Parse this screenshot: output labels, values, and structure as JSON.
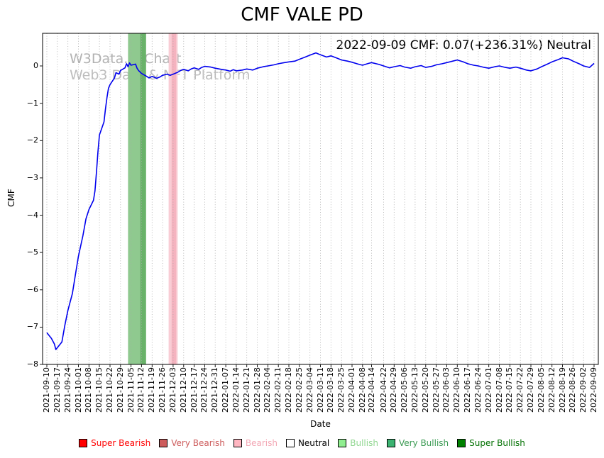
{
  "title": "CMF VALE PD",
  "annotation": "2022-09-09 CMF: 0.07(+236.31%) Neutral",
  "watermark": {
    "line1": "W3Data.io Chart",
    "line2": "Web3 Data & NFT Platform"
  },
  "chart_data": {
    "type": "line",
    "title": "CMF VALE PD",
    "xlabel": "Date",
    "ylabel": "CMF",
    "x_range": [
      "2021-09-10",
      "2022-09-09"
    ],
    "ylim": [
      -8,
      0.875
    ],
    "y_ticks": [
      0,
      -1,
      -2,
      -3,
      -4,
      -5,
      -6,
      -7,
      -8
    ],
    "grid": "vertical-dotted",
    "line_color": "#0000ee",
    "x_ticks": [
      "2021-09-10",
      "2021-09-17",
      "2021-09-24",
      "2021-10-01",
      "2021-10-08",
      "2021-10-15",
      "2021-10-22",
      "2021-10-29",
      "2021-11-05",
      "2021-11-12",
      "2021-11-19",
      "2021-11-26",
      "2021-12-03",
      "2021-12-10",
      "2021-12-17",
      "2021-12-24",
      "2021-12-31",
      "2022-01-07",
      "2022-01-14",
      "2022-01-21",
      "2022-01-28",
      "2022-02-04",
      "2022-02-11",
      "2022-02-18",
      "2022-02-25",
      "2022-03-04",
      "2022-03-11",
      "2022-03-18",
      "2022-03-25",
      "2022-04-01",
      "2022-04-08",
      "2022-04-14",
      "2022-04-22",
      "2022-04-29",
      "2022-05-06",
      "2022-05-13",
      "2022-05-20",
      "2022-05-27",
      "2022-06-03",
      "2022-06-10",
      "2022-06-17",
      "2022-06-24",
      "2022-07-01",
      "2022-07-08",
      "2022-07-15",
      "2022-07-22",
      "2022-07-29",
      "2022-08-05",
      "2022-08-12",
      "2022-08-19",
      "2022-08-26",
      "2022-09-02",
      "2022-09-09"
    ],
    "regions": [
      {
        "start": "2021-11-03",
        "end": "2021-11-11",
        "label": "Bullish",
        "color": "#8fc98f"
      },
      {
        "start": "2021-11-11",
        "end": "2021-11-15",
        "label": "Very Bullish",
        "color": "#69b269"
      },
      {
        "start": "2021-11-30",
        "end": "2021-12-06",
        "label": "Bearish",
        "color": "#f9cdd5"
      },
      {
        "start": "2021-12-02",
        "end": "2021-12-05",
        "label": "Bearish",
        "color": "#f5b3bf"
      }
    ],
    "series": [
      {
        "name": "CMF",
        "points": [
          [
            "2021-09-10",
            -7.15
          ],
          [
            "2021-09-13",
            -7.3
          ],
          [
            "2021-09-15",
            -7.45
          ],
          [
            "2021-09-16",
            -7.6
          ],
          [
            "2021-09-20",
            -7.4
          ],
          [
            "2021-09-22",
            -6.95
          ],
          [
            "2021-09-24",
            -6.55
          ],
          [
            "2021-09-27",
            -6.1
          ],
          [
            "2021-09-29",
            -5.6
          ],
          [
            "2021-10-01",
            -5.1
          ],
          [
            "2021-10-04",
            -4.55
          ],
          [
            "2021-10-06",
            -4.1
          ],
          [
            "2021-10-08",
            -3.85
          ],
          [
            "2021-10-11",
            -3.6
          ],
          [
            "2021-10-12",
            -3.35
          ],
          [
            "2021-10-13",
            -2.85
          ],
          [
            "2021-10-14",
            -2.3
          ],
          [
            "2021-10-15",
            -1.85
          ],
          [
            "2021-10-18",
            -1.5
          ],
          [
            "2021-10-19",
            -1.15
          ],
          [
            "2021-10-20",
            -0.85
          ],
          [
            "2021-10-21",
            -0.6
          ],
          [
            "2021-10-22",
            -0.5
          ],
          [
            "2021-10-25",
            -0.32
          ],
          [
            "2021-10-26",
            -0.18
          ],
          [
            "2021-10-28",
            -0.22
          ],
          [
            "2021-10-29",
            -0.12
          ],
          [
            "2021-11-01",
            -0.05
          ],
          [
            "2021-11-02",
            0.06
          ],
          [
            "2021-11-03",
            -0.02
          ],
          [
            "2021-11-04",
            0.08
          ],
          [
            "2021-11-05",
            0.02
          ],
          [
            "2021-11-08",
            0.05
          ],
          [
            "2021-11-09",
            -0.06
          ],
          [
            "2021-11-10",
            -0.12
          ],
          [
            "2021-11-12",
            -0.2
          ],
          [
            "2021-11-15",
            -0.27
          ],
          [
            "2021-11-17",
            -0.32
          ],
          [
            "2021-11-19",
            -0.28
          ],
          [
            "2021-11-22",
            -0.33
          ],
          [
            "2021-11-24",
            -0.3
          ],
          [
            "2021-11-26",
            -0.25
          ],
          [
            "2021-11-29",
            -0.22
          ],
          [
            "2021-12-01",
            -0.25
          ],
          [
            "2021-12-03",
            -0.22
          ],
          [
            "2021-12-06",
            -0.17
          ],
          [
            "2021-12-08",
            -0.12
          ],
          [
            "2021-12-10",
            -0.09
          ],
          [
            "2021-12-13",
            -0.13
          ],
          [
            "2021-12-15",
            -0.08
          ],
          [
            "2021-12-17",
            -0.05
          ],
          [
            "2021-12-20",
            -0.09
          ],
          [
            "2021-12-22",
            -0.04
          ],
          [
            "2021-12-24",
            -0.01
          ],
          [
            "2021-12-28",
            -0.03
          ],
          [
            "2021-12-31",
            -0.06
          ],
          [
            "2022-01-04",
            -0.09
          ],
          [
            "2022-01-07",
            -0.11
          ],
          [
            "2022-01-10",
            -0.14
          ],
          [
            "2022-01-12",
            -0.1
          ],
          [
            "2022-01-14",
            -0.13
          ],
          [
            "2022-01-18",
            -0.11
          ],
          [
            "2022-01-21",
            -0.08
          ],
          [
            "2022-01-25",
            -0.11
          ],
          [
            "2022-01-28",
            -0.06
          ],
          [
            "2022-02-01",
            -0.02
          ],
          [
            "2022-02-04",
            0.0
          ],
          [
            "2022-02-08",
            0.03
          ],
          [
            "2022-02-11",
            0.06
          ],
          [
            "2022-02-15",
            0.09
          ],
          [
            "2022-02-18",
            0.11
          ],
          [
            "2022-02-22",
            0.13
          ],
          [
            "2022-02-25",
            0.18
          ],
          [
            "2022-03-01",
            0.24
          ],
          [
            "2022-03-04",
            0.29
          ],
          [
            "2022-03-08",
            0.35
          ],
          [
            "2022-03-11",
            0.3
          ],
          [
            "2022-03-15",
            0.24
          ],
          [
            "2022-03-18",
            0.27
          ],
          [
            "2022-03-22",
            0.21
          ],
          [
            "2022-03-25",
            0.16
          ],
          [
            "2022-03-29",
            0.13
          ],
          [
            "2022-04-01",
            0.1
          ],
          [
            "2022-04-05",
            0.05
          ],
          [
            "2022-04-08",
            0.02
          ],
          [
            "2022-04-12",
            0.07
          ],
          [
            "2022-04-14",
            0.09
          ],
          [
            "2022-04-19",
            0.04
          ],
          [
            "2022-04-22",
            0.0
          ],
          [
            "2022-04-26",
            -0.05
          ],
          [
            "2022-04-29",
            -0.02
          ],
          [
            "2022-05-03",
            0.01
          ],
          [
            "2022-05-06",
            -0.03
          ],
          [
            "2022-05-10",
            -0.06
          ],
          [
            "2022-05-13",
            -0.02
          ],
          [
            "2022-05-17",
            0.01
          ],
          [
            "2022-05-20",
            -0.04
          ],
          [
            "2022-05-24",
            -0.01
          ],
          [
            "2022-05-27",
            0.03
          ],
          [
            "2022-05-31",
            0.06
          ],
          [
            "2022-06-03",
            0.09
          ],
          [
            "2022-06-07",
            0.13
          ],
          [
            "2022-06-10",
            0.16
          ],
          [
            "2022-06-14",
            0.11
          ],
          [
            "2022-06-17",
            0.06
          ],
          [
            "2022-06-21",
            0.02
          ],
          [
            "2022-06-24",
            0.0
          ],
          [
            "2022-06-28",
            -0.04
          ],
          [
            "2022-07-01",
            -0.06
          ],
          [
            "2022-07-05",
            -0.02
          ],
          [
            "2022-07-08",
            0.0
          ],
          [
            "2022-07-12",
            -0.04
          ],
          [
            "2022-07-15",
            -0.06
          ],
          [
            "2022-07-19",
            -0.03
          ],
          [
            "2022-07-22",
            -0.06
          ],
          [
            "2022-07-26",
            -0.11
          ],
          [
            "2022-07-29",
            -0.13
          ],
          [
            "2022-08-02",
            -0.08
          ],
          [
            "2022-08-05",
            -0.02
          ],
          [
            "2022-08-09",
            0.05
          ],
          [
            "2022-08-12",
            0.11
          ],
          [
            "2022-08-16",
            0.17
          ],
          [
            "2022-08-19",
            0.22
          ],
          [
            "2022-08-23",
            0.19
          ],
          [
            "2022-08-26",
            0.13
          ],
          [
            "2022-08-30",
            0.06
          ],
          [
            "2022-09-02",
            0.0
          ],
          [
            "2022-09-06",
            -0.04
          ],
          [
            "2022-09-09",
            0.07
          ]
        ]
      }
    ]
  },
  "legend": {
    "items": [
      {
        "label": "Super Bearish",
        "color": "#ff0000",
        "text": "#ff0000"
      },
      {
        "label": "Very Bearish",
        "color": "#cd5c5c",
        "text": "#cd5c5c"
      },
      {
        "label": "Bearish",
        "color": "#ffb6c1",
        "text": "#f3a7b4"
      },
      {
        "label": "Neutral",
        "color": "#ffffff",
        "text": "#000000"
      },
      {
        "label": "Bullish",
        "color": "#90ee90",
        "text": "#8fd68f"
      },
      {
        "label": "Very Bullish",
        "color": "#3cb371",
        "text": "#3a9a52"
      },
      {
        "label": "Super Bullish",
        "color": "#008000",
        "text": "#007000"
      }
    ]
  }
}
